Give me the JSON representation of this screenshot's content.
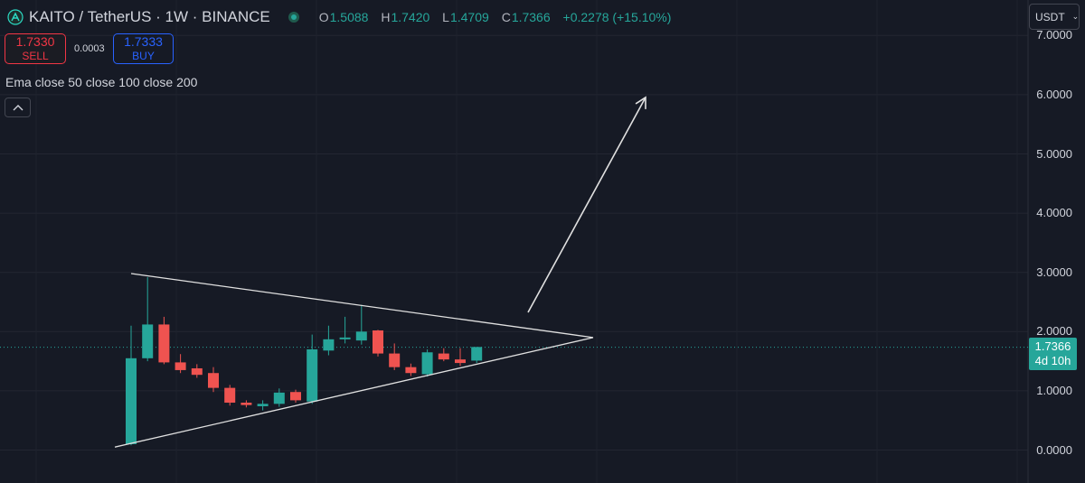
{
  "header": {
    "symbol": "KAITO / TetherUS · 1W · BINANCE",
    "ohlc": {
      "o_label": "O",
      "o": "1.5088",
      "h_label": "H",
      "h": "1.7420",
      "l_label": "L",
      "l": "1.4709",
      "c_label": "C",
      "c": "1.7366",
      "change": "+0.2278 (+15.10%)"
    }
  },
  "trade": {
    "sell_price": "1.7330",
    "sell_label": "SELL",
    "spread": "0.0003",
    "buy_price": "1.7333",
    "buy_label": "BUY"
  },
  "indicator": "Ema close 50 close 100 close 200",
  "collapse_icon": "chevron-up-icon",
  "currency_select": "USDT",
  "current_price": {
    "price": "1.7366",
    "countdown": "4d 10h"
  },
  "colors": {
    "up": "#26a69a",
    "down": "#ef5350",
    "background": "#161a25",
    "drawing": "#e0e0e0"
  },
  "chart_data": {
    "type": "candlestick",
    "y_axis_ticks": [
      "7.0000",
      "6.0000",
      "5.0000",
      "4.0000",
      "3.0000",
      "2.0000",
      "1.0000",
      "0.0000"
    ],
    "ylim": [
      0,
      7.1
    ],
    "last_price": 1.7366,
    "candles": [
      {
        "o": 0.1,
        "h": 2.1,
        "l": 0.08,
        "c": 1.55
      },
      {
        "o": 1.55,
        "h": 2.92,
        "l": 1.5,
        "c": 2.12
      },
      {
        "o": 2.12,
        "h": 2.25,
        "l": 1.45,
        "c": 1.48
      },
      {
        "o": 1.48,
        "h": 1.62,
        "l": 1.3,
        "c": 1.35
      },
      {
        "o": 1.38,
        "h": 1.45,
        "l": 1.22,
        "c": 1.27
      },
      {
        "o": 1.3,
        "h": 1.4,
        "l": 0.98,
        "c": 1.05
      },
      {
        "o": 1.05,
        "h": 1.1,
        "l": 0.75,
        "c": 0.8
      },
      {
        "o": 0.8,
        "h": 0.84,
        "l": 0.72,
        "c": 0.76
      },
      {
        "o": 0.74,
        "h": 0.84,
        "l": 0.67,
        "c": 0.78
      },
      {
        "o": 0.78,
        "h": 1.04,
        "l": 0.73,
        "c": 0.97
      },
      {
        "o": 0.98,
        "h": 1.02,
        "l": 0.8,
        "c": 0.84
      },
      {
        "o": 0.82,
        "h": 1.95,
        "l": 0.78,
        "c": 1.7
      },
      {
        "o": 1.68,
        "h": 2.1,
        "l": 1.6,
        "c": 1.87
      },
      {
        "o": 1.87,
        "h": 2.25,
        "l": 1.8,
        "c": 1.9
      },
      {
        "o": 1.85,
        "h": 2.45,
        "l": 1.78,
        "c": 2.0
      },
      {
        "o": 2.02,
        "h": 2.03,
        "l": 1.58,
        "c": 1.63
      },
      {
        "o": 1.63,
        "h": 1.8,
        "l": 1.35,
        "c": 1.4
      },
      {
        "o": 1.4,
        "h": 1.46,
        "l": 1.25,
        "c": 1.3
      },
      {
        "o": 1.28,
        "h": 1.7,
        "l": 1.24,
        "c": 1.65
      },
      {
        "o": 1.63,
        "h": 1.72,
        "l": 1.5,
        "c": 1.53
      },
      {
        "o": 1.53,
        "h": 1.72,
        "l": 1.42,
        "c": 1.47
      },
      {
        "o": 1.51,
        "h": 1.74,
        "l": 1.47,
        "c": 1.74
      }
    ],
    "drawings": {
      "upper_trendline": {
        "from_price": 2.98,
        "to_price": 1.9
      },
      "lower_trendline": {
        "from_price": 0.05,
        "to_price": 1.9
      },
      "arrow_target_price": 6.0
    }
  }
}
